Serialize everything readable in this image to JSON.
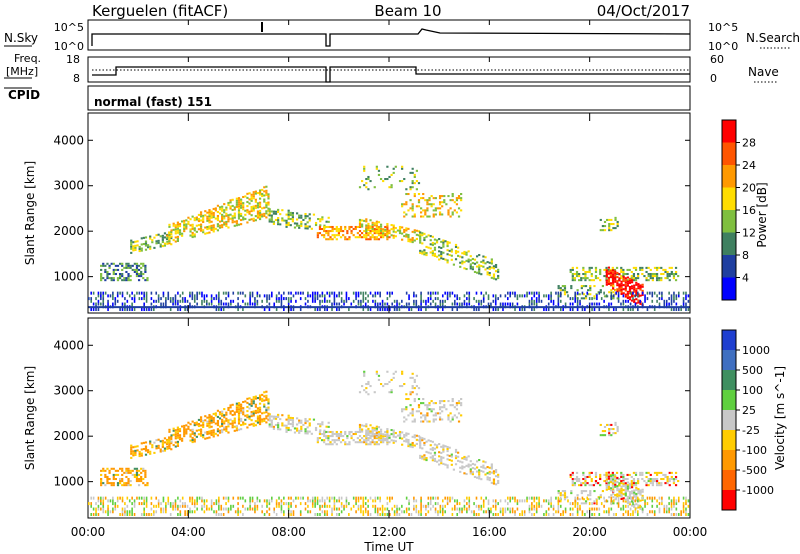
{
  "header": {
    "title_left": "Kerguelen (fitACF)",
    "title_center": "Beam 10",
    "title_right": "04/Oct/2017"
  },
  "panels": {
    "nsky": {
      "label": "N.Sky",
      "tick_top": "10^5",
      "tick_bottom": "10^0"
    },
    "nsearch": {
      "label": "N.Search",
      "tick_top": "10^5",
      "tick_bottom": "10^0"
    },
    "freq": {
      "label_line1": "Freq.",
      "label_line2": "[MHz]",
      "tick_top": "18",
      "tick_bottom": "8"
    },
    "nave": {
      "label": "Nave",
      "tick_top": "60",
      "tick_bottom": "0"
    },
    "cpid": {
      "label": "CPID",
      "value": "normal (fast) 151"
    }
  },
  "chart_data": [
    {
      "type": "heatmap",
      "name": "power",
      "ylabel": "Slant Range [km]",
      "yticks": [
        "1000",
        "2000",
        "3000",
        "4000"
      ],
      "ylim": [
        200,
        4600
      ],
      "colorbar_label": "Power [dB]",
      "colorbar_ticks": [
        "4",
        "8",
        "12",
        "16",
        "20",
        "24",
        "28"
      ],
      "colors": [
        "#0000ff",
        "#1f3fa0",
        "#3f8060",
        "#7fbf3f",
        "#ffdd00",
        "#ff9900",
        "#ff5500",
        "#ff0000"
      ]
    },
    {
      "type": "heatmap",
      "name": "velocity",
      "ylabel": "Slant Range [km]",
      "yticks": [
        "1000",
        "2000",
        "3000",
        "4000"
      ],
      "ylim": [
        200,
        4600
      ],
      "colorbar_label": "Velocity [m s^-1]",
      "colorbar_ticks": [
        "1000",
        "500",
        "100",
        "25",
        "-25",
        "-100",
        "-500",
        "-1000"
      ],
      "colors": [
        "#1f3fd0",
        "#3f6fc0",
        "#3f8f60",
        "#5fcf3f",
        "#c8c8c8",
        "#ffcc00",
        "#ff9900",
        "#ff6600",
        "#ff0000"
      ]
    }
  ],
  "xaxis": {
    "label": "Time UT",
    "ticks": [
      "00:00",
      "04:00",
      "08:00",
      "12:00",
      "16:00",
      "20:00",
      "00:00"
    ]
  }
}
